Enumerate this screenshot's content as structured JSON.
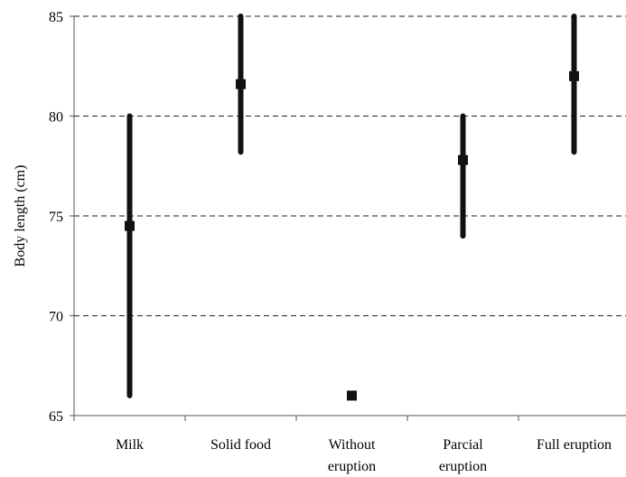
{
  "chart_data": {
    "type": "range",
    "title": "",
    "xlabel": "",
    "ylabel": "Body length (cm)",
    "ylim": [
      65,
      85
    ],
    "yticks": [
      65,
      70,
      75,
      80,
      85
    ],
    "grid": "horizontal-dashed",
    "categories": [
      [
        "Milk"
      ],
      [
        "Solid food"
      ],
      [
        "Without",
        "eruption"
      ],
      [
        "Parcial",
        "eruption"
      ],
      [
        "Full eruption"
      ]
    ],
    "series": [
      {
        "low": 66.0,
        "high": 80.0,
        "value": 74.5
      },
      {
        "low": 78.2,
        "high": 85.0,
        "value": 81.6
      },
      {
        "low": 66.0,
        "high": 66.0,
        "value": 66.0
      },
      {
        "low": 74.0,
        "high": 80.0,
        "value": 77.8
      },
      {
        "low": 78.2,
        "high": 85.0,
        "value": 82.0
      }
    ],
    "colors": {
      "bar": "#111111",
      "grid": "#222222",
      "axis": "#555555"
    }
  }
}
